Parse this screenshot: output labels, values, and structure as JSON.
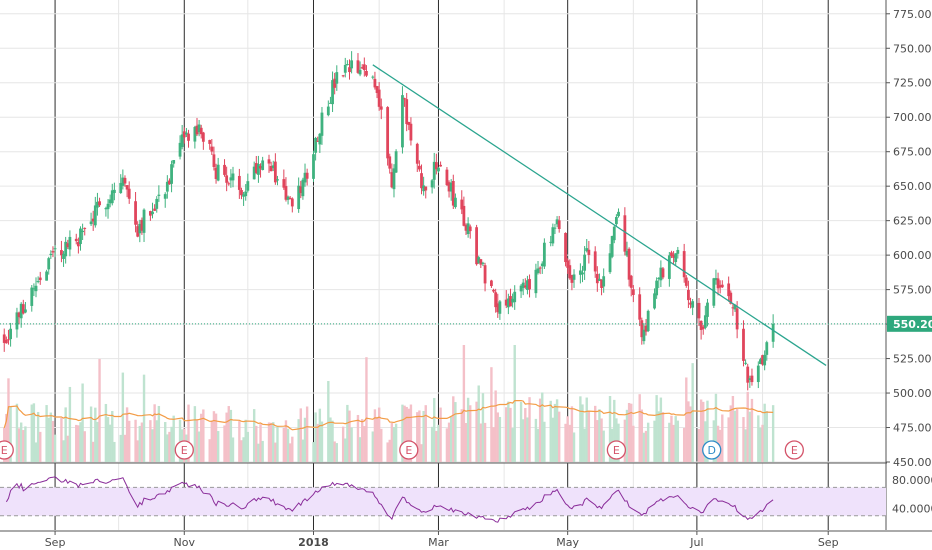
{
  "chart_data": {
    "type": "candlestick",
    "title": "",
    "x_tick_labels": [
      "Sep",
      "Nov",
      "2018",
      "Mar",
      "May",
      "Jul",
      "Sep"
    ],
    "x_tick_bold": [
      false,
      false,
      true,
      false,
      false,
      false,
      false
    ],
    "y_ticks": [
      "775.00",
      "750.00",
      "725.00",
      "700.00",
      "675.00",
      "650.00",
      "625.00",
      "600.00",
      "575.00",
      "550.00",
      "525.00",
      "500.00",
      "475.00",
      "450.00"
    ],
    "ylim": [
      450,
      785
    ],
    "last_price": 550.2,
    "last_price_label": "550.20",
    "colors": {
      "up": "#3fb27f",
      "down": "#e0455c",
      "vol_up": "#bfe3d0",
      "vol_down": "#f4c0c8",
      "trendline": "#2ba58f",
      "ma": "#f39c46",
      "rsi_line": "#8a2d9a",
      "rsi_band": "#efe2fb",
      "price_tag": "#2ea87d"
    },
    "trendline": {
      "from": {
        "date": "2018-01-29",
        "price": 738
      },
      "to": {
        "date": "2018-08-31",
        "price": 520
      }
    },
    "waypoints": [
      [
        "2017-08-08",
        540
      ],
      [
        "2017-08-15",
        557
      ],
      [
        "2017-08-22",
        578
      ],
      [
        "2017-08-31",
        600
      ],
      [
        "2017-09-12",
        612
      ],
      [
        "2017-09-26",
        643
      ],
      [
        "2017-10-03",
        655
      ],
      [
        "2017-10-10",
        620
      ],
      [
        "2017-10-24",
        652
      ],
      [
        "2017-11-01",
        685
      ],
      [
        "2017-11-09",
        690
      ],
      [
        "2017-11-16",
        662
      ],
      [
        "2017-11-28",
        648
      ],
      [
        "2017-12-08",
        672
      ],
      [
        "2017-12-18",
        648
      ],
      [
        "2017-12-22",
        632
      ],
      [
        "2017-12-30",
        665
      ],
      [
        "2018-01-05",
        700
      ],
      [
        "2018-01-12",
        728
      ],
      [
        "2018-01-19",
        735
      ],
      [
        "2018-01-29",
        730
      ],
      [
        "2018-02-02",
        708
      ],
      [
        "2018-02-07",
        648
      ],
      [
        "2018-02-12",
        715
      ],
      [
        "2018-02-16",
        685
      ],
      [
        "2018-02-21",
        648
      ],
      [
        "2018-03-01",
        665
      ],
      [
        "2018-03-12",
        630
      ],
      [
        "2018-03-19",
        600
      ],
      [
        "2018-03-29",
        565
      ],
      [
        "2018-04-12",
        575
      ],
      [
        "2018-04-19",
        600
      ],
      [
        "2018-04-26",
        620
      ],
      [
        "2018-05-03",
        580
      ],
      [
        "2018-05-10",
        600
      ],
      [
        "2018-05-17",
        575
      ],
      [
        "2018-05-22",
        612
      ],
      [
        "2018-05-25",
        630
      ],
      [
        "2018-06-05",
        540
      ],
      [
        "2018-06-12",
        580
      ],
      [
        "2018-06-22",
        608
      ],
      [
        "2018-06-29",
        560
      ],
      [
        "2018-07-03",
        548
      ],
      [
        "2018-07-09",
        580
      ],
      [
        "2018-07-13",
        575
      ],
      [
        "2018-07-18",
        565
      ],
      [
        "2018-07-23",
        525
      ],
      [
        "2018-07-26",
        505
      ],
      [
        "2018-07-31",
        520
      ],
      [
        "2018-08-06",
        552
      ]
    ],
    "earnings_markers": [
      {
        "date": "2017-08-08",
        "label": "E"
      },
      {
        "date": "2017-11-01",
        "label": "E"
      },
      {
        "date": "2018-02-15",
        "label": "E"
      },
      {
        "date": "2018-05-24",
        "label": "E"
      },
      {
        "date": "2018-07-08",
        "label": "D"
      },
      {
        "date": "2018-08-16",
        "label": "E"
      }
    ],
    "rsi": {
      "y_ticks": [
        "80.0000",
        "40.0000"
      ],
      "upper_band": 70,
      "lower_band": 30
    }
  }
}
